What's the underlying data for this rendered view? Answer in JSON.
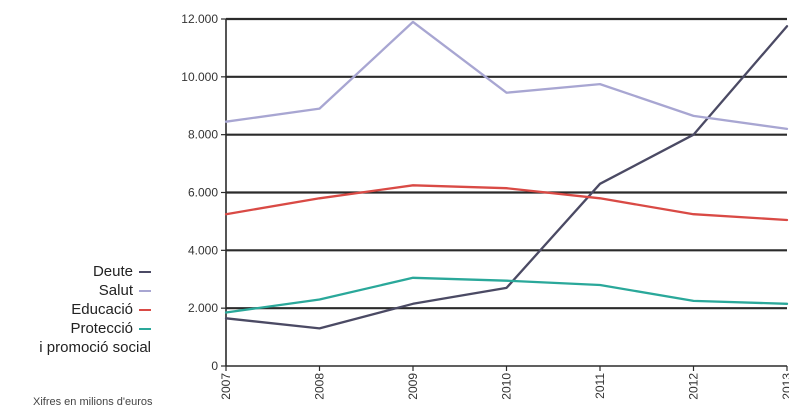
{
  "chart_data": {
    "type": "line",
    "x": [
      "2007",
      "2008",
      "2009",
      "2010",
      "2011",
      "2012",
      "2013"
    ],
    "ylim": [
      0,
      12000
    ],
    "yticks": [
      "0",
      "2.000",
      "4.000",
      "6.000",
      "8.000",
      "10.000",
      "12.000"
    ],
    "ytick_values": [
      0,
      2000,
      4000,
      6000,
      8000,
      10000,
      12000
    ],
    "grid": true,
    "series": [
      {
        "name": "Deute",
        "color": "#4b4a64",
        "values": [
          1650,
          1300,
          2150,
          2700,
          6300,
          8000,
          11750
        ]
      },
      {
        "name": "Salut",
        "color": "#a8a6d2",
        "values": [
          8450,
          8900,
          11900,
          9450,
          9750,
          8650,
          8200
        ]
      },
      {
        "name": "Educació",
        "color": "#d94a45",
        "values": [
          5250,
          5800,
          6250,
          6150,
          5800,
          5250,
          5050
        ]
      },
      {
        "name": "Protecció i promoció social",
        "color": "#2aa89a",
        "values": [
          1850,
          2300,
          3050,
          2950,
          2800,
          2250,
          2150
        ]
      }
    ]
  },
  "legend": [
    {
      "label": "Deute",
      "color": "#4b4a64"
    },
    {
      "label": "Salut",
      "color": "#a8a6d2"
    },
    {
      "label": "Educació",
      "color": "#d94a45"
    },
    {
      "label": "Protecció",
      "color": "#2aa89a"
    }
  ],
  "legend_extra": "i promoció social",
  "note": "Xifres en milions d'euros"
}
